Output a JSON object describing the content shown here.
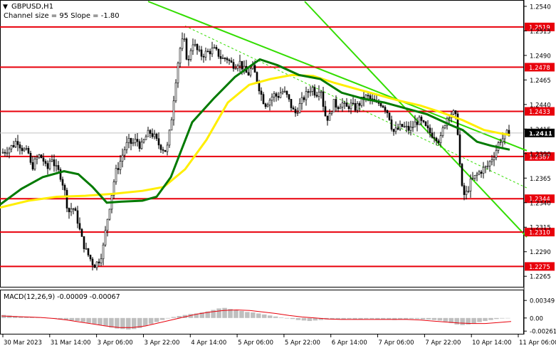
{
  "header": {
    "symbol": "GBPUSD,H1",
    "channel_label": "Channel size = 95 Slope = -1.80"
  },
  "macd_label": "MACD(12,26,9) -0.00009 -0.00067",
  "chart_data": {
    "type": "candlestick",
    "symbol": "GBPUSD",
    "timeframe": "H1",
    "price_axis": {
      "range": [
        1.2255,
        1.2545
      ],
      "ticks": [
        "1.2540",
        "1.2515",
        "1.2490",
        "1.2465",
        "1.2440",
        "1.2415",
        "1.2390",
        "1.2365",
        "1.2340",
        "1.2315",
        "1.2290",
        "1.2265"
      ]
    },
    "time_labels": [
      "30 Mar 2023",
      "31 Mar 14:00",
      "3 Apr 06:00",
      "3 Apr 22:00",
      "4 Apr 14:00",
      "5 Apr 06:00",
      "5 Apr 22:00",
      "6 Apr 14:00",
      "7 Apr 06:00",
      "7 Apr 22:00",
      "10 Apr 14:00",
      "11 Apr 06:00"
    ],
    "levels": [
      {
        "value": 1.2519,
        "label": "1.2519"
      },
      {
        "value": 1.2478,
        "label": "1.2478"
      },
      {
        "value": 1.2433,
        "label": "1.2433"
      },
      {
        "value": 1.2387,
        "label": "1.2387"
      },
      {
        "value": 1.2344,
        "label": "1.2344"
      },
      {
        "value": 1.231,
        "label": "1.2310"
      },
      {
        "value": 1.2275,
        "label": "1.2275"
      }
    ],
    "current_price": {
      "value": 1.2411,
      "label": "1.2411"
    },
    "close_path": [
      [
        0,
        1.239
      ],
      [
        6,
        1.2392
      ],
      [
        12,
        1.2395
      ],
      [
        18,
        1.2398
      ],
      [
        24,
        1.2404
      ],
      [
        30,
        1.2396
      ],
      [
        36,
        1.2392
      ],
      [
        40,
        1.239
      ],
      [
        44,
        1.2375
      ],
      [
        48,
        1.238
      ],
      [
        54,
        1.2388
      ],
      [
        60,
        1.2385
      ],
      [
        66,
        1.2372
      ],
      [
        72,
        1.2388
      ],
      [
        78,
        1.2375
      ],
      [
        84,
        1.237
      ],
      [
        90,
        1.2355
      ],
      [
        96,
        1.233
      ],
      [
        102,
        1.2336
      ],
      [
        108,
        1.2325
      ],
      [
        114,
        1.2305
      ],
      [
        120,
        1.2292
      ],
      [
        126,
        1.2284
      ],
      [
        132,
        1.2276
      ],
      [
        138,
        1.228
      ],
      [
        144,
        1.229
      ],
      [
        150,
        1.232
      ],
      [
        156,
        1.2345
      ],
      [
        162,
        1.237
      ],
      [
        168,
        1.238
      ],
      [
        174,
        1.2393
      ],
      [
        180,
        1.2402
      ],
      [
        186,
        1.24
      ],
      [
        192,
        1.2404
      ],
      [
        198,
        1.2396
      ],
      [
        204,
        1.2406
      ],
      [
        210,
        1.2412
      ],
      [
        216,
        1.2408
      ],
      [
        222,
        1.24
      ],
      [
        228,
        1.2396
      ],
      [
        234,
        1.2392
      ],
      [
        240,
        1.242
      ],
      [
        246,
        1.246
      ],
      [
        252,
        1.2495
      ],
      [
        258,
        1.2508
      ],
      [
        264,
        1.248
      ],
      [
        270,
        1.2505
      ],
      [
        276,
        1.2496
      ],
      [
        282,
        1.249
      ],
      [
        288,
        1.2492
      ],
      [
        294,
        1.2494
      ],
      [
        300,
        1.2496
      ],
      [
        306,
        1.2492
      ],
      [
        312,
        1.2486
      ],
      [
        318,
        1.2488
      ],
      [
        324,
        1.2482
      ],
      [
        330,
        1.248
      ],
      [
        336,
        1.2484
      ],
      [
        342,
        1.2476
      ],
      [
        348,
        1.247
      ],
      [
        354,
        1.2478
      ],
      [
        360,
        1.2468
      ],
      [
        366,
        1.2452
      ],
      [
        372,
        1.244
      ],
      [
        378,
        1.2444
      ],
      [
        384,
        1.245
      ],
      [
        390,
        1.2448
      ],
      [
        396,
        1.2454
      ],
      [
        402,
        1.245
      ],
      [
        408,
        1.244
      ],
      [
        414,
        1.243
      ],
      [
        420,
        1.2438
      ],
      [
        426,
        1.2446
      ],
      [
        432,
        1.2452
      ],
      [
        438,
        1.2458
      ],
      [
        444,
        1.245
      ],
      [
        450,
        1.246
      ],
      [
        456,
        1.243
      ],
      [
        462,
        1.2425
      ],
      [
        468,
        1.2442
      ],
      [
        474,
        1.2438
      ],
      [
        480,
        1.2442
      ],
      [
        486,
        1.2436
      ],
      [
        492,
        1.244
      ],
      [
        498,
        1.2436
      ],
      [
        504,
        1.244
      ],
      [
        510,
        1.2446
      ],
      [
        516,
        1.2448
      ],
      [
        522,
        1.2444
      ],
      [
        528,
        1.244
      ],
      [
        534,
        1.2442
      ],
      [
        540,
        1.2438
      ],
      [
        546,
        1.243
      ],
      [
        552,
        1.2412
      ],
      [
        558,
        1.2414
      ],
      [
        564,
        1.2418
      ],
      [
        570,
        1.2416
      ],
      [
        576,
        1.2414
      ],
      [
        582,
        1.242
      ],
      [
        588,
        1.2424
      ],
      [
        594,
        1.242
      ],
      [
        600,
        1.2414
      ],
      [
        606,
        1.241
      ],
      [
        612,
        1.2408
      ],
      [
        618,
        1.2402
      ],
      [
        624,
        1.242
      ],
      [
        630,
        1.243
      ],
      [
        636,
        1.2432
      ],
      [
        642,
        1.2424
      ],
      [
        648,
        1.2356
      ],
      [
        652,
        1.2348
      ],
      [
        656,
        1.235
      ],
      [
        660,
        1.236
      ],
      [
        666,
        1.2365
      ],
      [
        672,
        1.237
      ],
      [
        678,
        1.2374
      ],
      [
        684,
        1.2376
      ],
      [
        690,
        1.2384
      ],
      [
        696,
        1.2392
      ],
      [
        702,
        1.2404
      ],
      [
        708,
        1.2406
      ],
      [
        714,
        1.2412
      ],
      [
        718,
        1.2411
      ]
    ],
    "moving_averages": [
      {
        "color": "#ffee00",
        "path": [
          [
            0,
            1.2335
          ],
          [
            40,
            1.2342
          ],
          [
            80,
            1.2346
          ],
          [
            120,
            1.2347
          ],
          [
            160,
            1.2349
          ],
          [
            200,
            1.2352
          ],
          [
            230,
            1.2356
          ],
          [
            260,
            1.2374
          ],
          [
            290,
            1.2404
          ],
          [
            320,
            1.2442
          ],
          [
            350,
            1.246
          ],
          [
            380,
            1.2466
          ],
          [
            410,
            1.247
          ],
          [
            440,
            1.2469
          ],
          [
            470,
            1.2462
          ],
          [
            500,
            1.2456
          ],
          [
            530,
            1.245
          ],
          [
            560,
            1.2444
          ],
          [
            590,
            1.2439
          ],
          [
            620,
            1.2432
          ],
          [
            650,
            1.2424
          ],
          [
            680,
            1.2414
          ],
          [
            700,
            1.2411
          ],
          [
            716,
            1.2409
          ]
        ]
      },
      {
        "color": "#007a00",
        "path": [
          [
            0,
            1.2338
          ],
          [
            30,
            1.2354
          ],
          [
            60,
            1.2366
          ],
          [
            90,
            1.2372
          ],
          [
            110,
            1.2369
          ],
          [
            130,
            1.2356
          ],
          [
            150,
            1.234
          ],
          [
            170,
            1.2341
          ],
          [
            200,
            1.2342
          ],
          [
            220,
            1.2346
          ],
          [
            240,
            1.2366
          ],
          [
            270,
            1.2422
          ],
          [
            300,
            1.2446
          ],
          [
            330,
            1.2468
          ],
          [
            365,
            1.2486
          ],
          [
            390,
            1.248
          ],
          [
            420,
            1.247
          ],
          [
            450,
            1.2466
          ],
          [
            480,
            1.2452
          ],
          [
            510,
            1.2446
          ],
          [
            540,
            1.2442
          ],
          [
            570,
            1.2436
          ],
          [
            600,
            1.243
          ],
          [
            630,
            1.242
          ],
          [
            650,
            1.2414
          ],
          [
            670,
            1.2402
          ],
          [
            690,
            1.2398
          ],
          [
            716,
            1.2394
          ]
        ]
      }
    ],
    "channel": {
      "color": "#33dd00",
      "upper": [
        [
          208,
          1.256
        ],
        [
          740,
          1.2393
        ]
      ],
      "lower": [
        [
          428,
          1.256
        ],
        [
          740,
          1.2305
        ]
      ],
      "middle_dashed": [
        [
          260,
          1.252
        ],
        [
          740,
          1.2355
        ]
      ]
    },
    "macd": {
      "label": "MACD(12,26,9) -0.00009 -0.00067",
      "ticks": [
        "0.00349",
        "0.00",
        "-0.00261"
      ],
      "range": [
        -0.003,
        0.0038
      ],
      "histogram": [
        0.0006,
        0.0005,
        0.0004,
        0.0003,
        0.0002,
        0.0002,
        0.0001,
        0.0001,
        0.0,
        -0.0001,
        -0.0003,
        -0.0004,
        -0.0005,
        -0.0006,
        -0.0008,
        -0.001,
        -0.0012,
        -0.0014,
        -0.0016,
        -0.0019,
        -0.0021,
        -0.0022,
        -0.0023,
        -0.0022,
        -0.002,
        -0.0016,
        -0.0012,
        -0.0008,
        -0.0004,
        -0.0001,
        0.0002,
        0.0004,
        0.0006,
        0.0008,
        0.0009,
        0.0011,
        0.0013,
        0.0016,
        0.0019,
        0.002,
        0.0018,
        0.0016,
        0.0014,
        0.0012,
        0.0011,
        0.0009,
        0.0007,
        0.0005,
        0.0003,
        0.0001,
        -0.0001,
        -0.0002,
        -0.0004,
        -0.0005,
        -0.0006,
        -0.0005,
        -0.0004,
        -0.0003,
        -0.0003,
        -0.0003,
        -0.0003,
        -0.0002,
        -0.0003,
        -0.0003,
        -0.0002,
        -0.0002,
        -0.0003,
        -0.0003,
        -0.0003,
        -0.0004,
        -0.0003,
        -0.0003,
        -0.0002,
        -0.0002,
        -0.0003,
        -0.0003,
        -0.0004,
        -0.0005,
        -0.0007,
        -0.001,
        -0.0013,
        -0.0014,
        -0.0013,
        -0.0011,
        -0.0008,
        -0.0006,
        -0.0004,
        -0.0002,
        -0.0001,
        0.0
      ],
      "signal": [
        0.0004,
        0.0003,
        0.0002,
        0.0001,
        -0.0001,
        -0.0004,
        -0.0008,
        -0.0012,
        -0.0016,
        -0.0019,
        -0.0019,
        -0.0016,
        -0.001,
        -0.0004,
        0.0002,
        0.0008,
        0.0012,
        0.0015,
        0.0016,
        0.0015,
        0.0012,
        0.0009,
        0.0005,
        0.0002,
        0.0,
        -0.0002,
        -0.0003,
        -0.0003,
        -0.0003,
        -0.0003,
        -0.0003,
        -0.0003,
        -0.0004,
        -0.0006,
        -0.0008,
        -0.001,
        -0.0011,
        -0.0011,
        -0.0009,
        -0.0007
      ]
    }
  }
}
